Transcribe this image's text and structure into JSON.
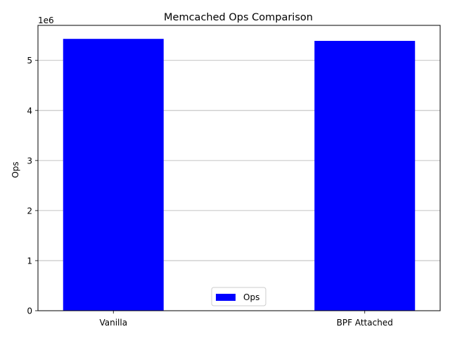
{
  "chart_data": {
    "type": "bar",
    "title": "Memcached Ops Comparison",
    "xlabel": "",
    "ylabel": "Ops",
    "y_offset_label": "1e6",
    "y_scale_factor": 1000000,
    "categories": [
      "Vanilla",
      "BPF Attached"
    ],
    "series": [
      {
        "name": "Ops",
        "values": [
          5430000,
          5390000
        ],
        "color": "#0000ff"
      }
    ],
    "yticks": [
      0,
      1,
      2,
      3,
      4,
      5
    ],
    "ylim": [
      0,
      5700000
    ],
    "grid": "y",
    "legend_position": "bottom-center"
  }
}
